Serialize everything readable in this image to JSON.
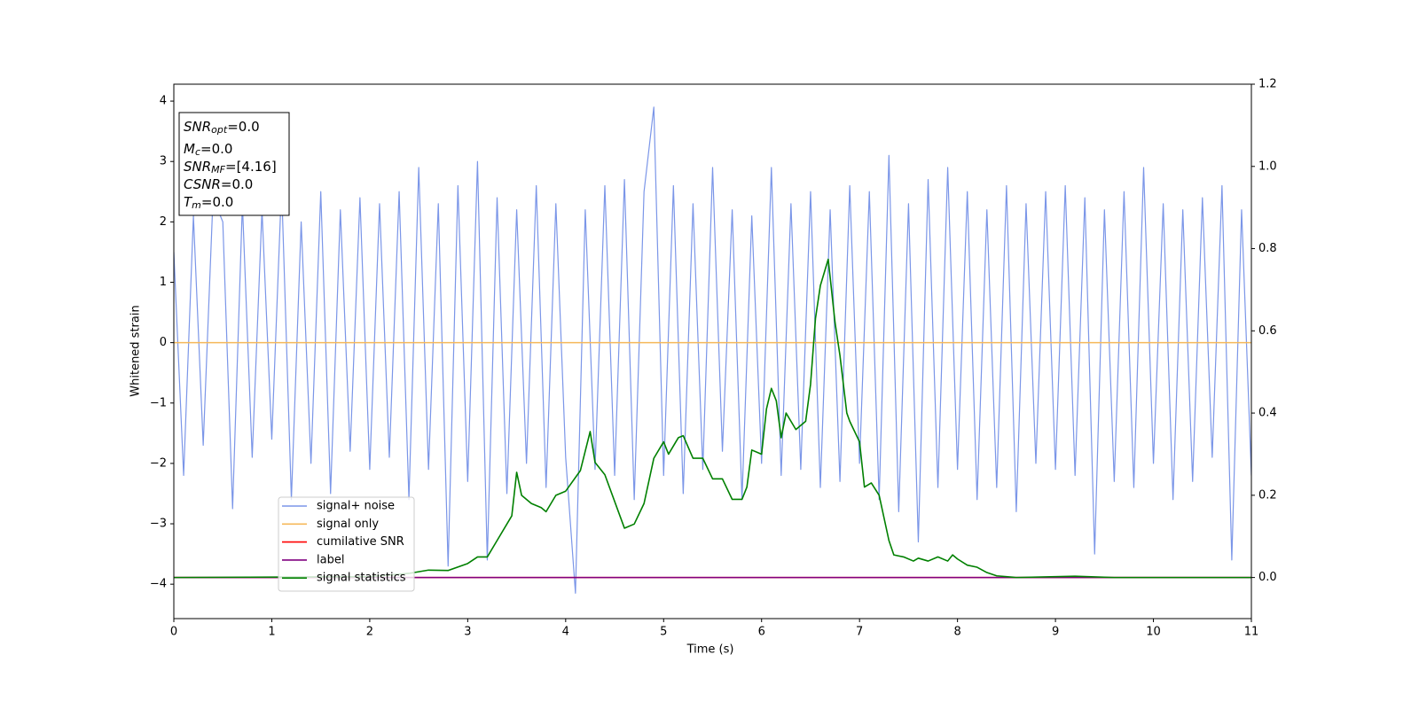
{
  "chart_data": {
    "type": "line",
    "xlabel": "Time (s)",
    "ylabel": "Whitened strain",
    "xlim": [
      0,
      11
    ],
    "xticks": [
      0,
      1,
      2,
      3,
      4,
      5,
      6,
      7,
      8,
      9,
      10,
      11
    ],
    "ylim": [
      -4.57,
      4.28
    ],
    "yticks": [
      {
        "value": -4,
        "label": "−4"
      },
      {
        "value": -3,
        "label": "−3"
      },
      {
        "value": -2,
        "label": "−2"
      },
      {
        "value": -1,
        "label": "−1"
      },
      0,
      1,
      2,
      3,
      4
    ],
    "y2lim": [
      -0.1,
      1.2
    ],
    "y2ticks": [
      {
        "value": 0,
        "label": "0.0"
      },
      {
        "value": 0.2,
        "label": "0.2"
      },
      {
        "value": 0.4,
        "label": "0.4"
      },
      {
        "value": 0.6,
        "label": "0.6"
      },
      {
        "value": 0.8,
        "label": "0.8"
      },
      {
        "value": 1,
        "label": "1.0"
      },
      {
        "value": 1.2,
        "label": "1.2"
      }
    ],
    "legend": "lower left",
    "annotations": [
      {
        "main": "SNR",
        "sub": "opt",
        "rest": "=0.0"
      },
      {
        "main": "M",
        "sub": "c",
        "rest": "=0.0"
      },
      {
        "main": "SNR",
        "sub": "MF",
        "rest": "=[4.16]"
      },
      {
        "main": "CSNR",
        "sub": null,
        "rest": "=0.0"
      },
      {
        "main": "T",
        "sub": "m",
        "rest": "=0.0"
      }
    ],
    "series": [
      {
        "name": "signal+ noise",
        "color": "#7b96e8",
        "x": [
          0,
          0.1,
          0.2,
          0.3,
          0.4,
          0.5,
          0.6,
          0.7,
          0.8,
          0.9,
          1,
          1.1,
          1.2,
          1.3,
          1.4,
          1.5,
          1.6,
          1.7,
          1.8,
          1.9,
          2,
          2.1,
          2.2,
          2.3,
          2.4,
          2.5,
          2.6,
          2.7,
          2.8,
          2.9,
          3,
          3.1,
          3.2,
          3.3,
          3.4,
          3.5,
          3.6,
          3.7,
          3.8,
          3.9,
          4,
          4.1,
          4.2,
          4.3,
          4.4,
          4.5,
          4.6,
          4.7,
          4.8,
          4.9,
          5,
          5.1,
          5.2,
          5.3,
          5.4,
          5.5,
          5.6,
          5.7,
          5.8,
          5.9,
          6,
          6.1,
          6.2,
          6.3,
          6.4,
          6.5,
          6.6,
          6.7,
          6.8,
          6.9,
          7,
          7.1,
          7.2,
          7.3,
          7.4,
          7.5,
          7.6,
          7.7,
          7.8,
          7.9,
          8,
          8.1,
          8.2,
          8.3,
          8.4,
          8.5,
          8.6,
          8.7,
          8.8,
          8.9,
          9,
          9.1,
          9.2,
          9.3,
          9.4,
          9.5,
          9.6,
          9.7,
          9.8,
          9.9,
          10,
          10.1,
          10.2,
          10.3,
          10.4,
          10.5,
          10.6,
          10.7,
          10.8,
          10.9,
          11
        ],
        "values": [
          1.5,
          -2.2,
          2.1,
          -1.7,
          2.4,
          2.0,
          -2.75,
          2.3,
          -1.9,
          2.2,
          -1.6,
          2.6,
          -2.6,
          2.0,
          -2.0,
          2.5,
          -2.5,
          2.2,
          -1.8,
          2.4,
          -2.1,
          2.3,
          -1.9,
          2.5,
          -2.6,
          2.9,
          -2.1,
          2.3,
          -3.7,
          2.6,
          -2.3,
          3.0,
          -3.6,
          2.4,
          -2.5,
          2.2,
          -2.0,
          2.6,
          -2.4,
          2.3,
          -1.9,
          -4.15,
          2.2,
          -2.1,
          2.6,
          -2.2,
          2.7,
          -2.6,
          2.5,
          3.9,
          -2.2,
          2.6,
          -2.5,
          2.3,
          -2.1,
          2.9,
          -1.8,
          2.2,
          -2.6,
          2.1,
          -2.0,
          2.9,
          -2.2,
          2.3,
          -2.1,
          2.5,
          -2.4,
          2.2,
          -2.3,
          2.6,
          -2.0,
          2.5,
          -2.6,
          3.1,
          -2.8,
          2.3,
          -3.3,
          2.7,
          -2.4,
          2.9,
          -2.1,
          2.5,
          -2.6,
          2.2,
          -2.4,
          2.6,
          -2.8,
          2.3,
          -2.0,
          2.5,
          -2.1,
          2.6,
          -2.2,
          2.4,
          -3.5,
          2.2,
          -2.3,
          2.5,
          -2.4,
          2.9,
          -2.0,
          2.3,
          -2.6,
          2.2,
          -2.3,
          2.4,
          -1.9,
          2.6,
          -3.6,
          2.2,
          -2.2
        ]
      },
      {
        "name": "signal only",
        "color": "#f5b85a",
        "x": [
          0,
          11
        ],
        "values": [
          0,
          0
        ]
      },
      {
        "name": "cumilative SNR",
        "color": "#ff0000",
        "axis": "y2",
        "x": [
          0,
          11
        ],
        "values": [
          0,
          0
        ]
      },
      {
        "name": "label",
        "color": "#800080",
        "axis": "y2",
        "x": [
          0,
          11
        ],
        "values": [
          0,
          0
        ]
      },
      {
        "name": "signal statistics",
        "color": "#008000",
        "axis": "y2",
        "x": [
          0,
          2.0,
          2.4,
          2.6,
          2.8,
          3.0,
          3.1,
          3.2,
          3.3,
          3.4,
          3.45,
          3.5,
          3.55,
          3.65,
          3.75,
          3.8,
          3.9,
          4.0,
          4.15,
          4.25,
          4.3,
          4.4,
          4.6,
          4.7,
          4.8,
          4.9,
          5.0,
          5.05,
          5.15,
          5.2,
          5.3,
          5.4,
          5.5,
          5.6,
          5.7,
          5.8,
          5.85,
          5.9,
          6.0,
          6.05,
          6.1,
          6.15,
          6.2,
          6.25,
          6.35,
          6.4,
          6.45,
          6.5,
          6.55,
          6.6,
          6.68,
          6.75,
          6.8,
          6.87,
          6.9,
          7.0,
          7.05,
          7.12,
          7.2,
          7.3,
          7.35,
          7.45,
          7.55,
          7.6,
          7.7,
          7.8,
          7.9,
          7.95,
          8.0,
          8.1,
          8.2,
          8.3,
          8.4,
          8.6,
          9.2,
          9.6,
          11
        ],
        "values": [
          0,
          0.002,
          0.01,
          0.018,
          0.017,
          0.034,
          0.05,
          0.05,
          0.09,
          0.13,
          0.15,
          0.256,
          0.2,
          0.18,
          0.17,
          0.16,
          0.2,
          0.21,
          0.26,
          0.355,
          0.28,
          0.25,
          0.12,
          0.13,
          0.18,
          0.29,
          0.33,
          0.3,
          0.34,
          0.345,
          0.29,
          0.29,
          0.24,
          0.24,
          0.19,
          0.19,
          0.22,
          0.31,
          0.3,
          0.41,
          0.46,
          0.43,
          0.34,
          0.4,
          0.36,
          0.37,
          0.38,
          0.47,
          0.63,
          0.71,
          0.774,
          0.62,
          0.54,
          0.4,
          0.38,
          0.33,
          0.22,
          0.23,
          0.2,
          0.09,
          0.055,
          0.05,
          0.04,
          0.047,
          0.04,
          0.05,
          0.04,
          0.055,
          0.045,
          0.03,
          0.025,
          0.012,
          0.004,
          0,
          0.003,
          0,
          0
        ]
      }
    ]
  }
}
